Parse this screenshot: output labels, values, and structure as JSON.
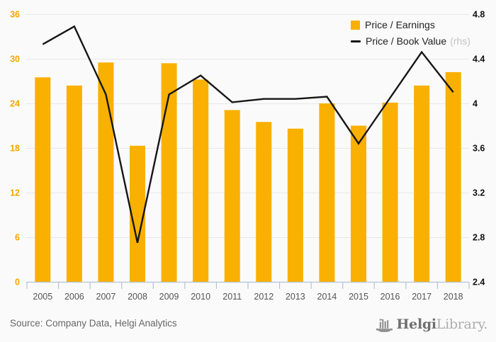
{
  "chart_data": {
    "type": "bar-line-combo",
    "categories": [
      "2005",
      "2006",
      "2007",
      "2008",
      "2009",
      "2010",
      "2011",
      "2012",
      "2013",
      "2014",
      "2015",
      "2016",
      "2017",
      "2018"
    ],
    "series": [
      {
        "name": "Price / Earnings",
        "type": "bar",
        "axis": "left",
        "values": [
          27.5,
          26.4,
          29.5,
          18.3,
          29.4,
          27.2,
          23.1,
          21.5,
          20.6,
          24.0,
          21.0,
          24.1,
          26.4,
          28.2
        ]
      },
      {
        "name": "Price / Book Value",
        "type": "line",
        "axis": "right",
        "values": [
          4.53,
          4.69,
          4.08,
          2.75,
          4.08,
          4.25,
          4.01,
          4.04,
          4.04,
          4.06,
          3.64,
          4.05,
          4.46,
          4.1
        ]
      }
    ],
    "left_axis": {
      "min": 0,
      "max": 36,
      "tick_values": [
        0,
        6,
        12,
        18,
        24,
        30,
        36
      ],
      "tick_labels": [
        "0",
        "6",
        "12",
        "18",
        "24",
        "30",
        "36"
      ]
    },
    "right_axis": {
      "min": 2.4,
      "max": 4.8,
      "tick_values": [
        2.4,
        2.8,
        3.2,
        3.6,
        4,
        4.4,
        4.8
      ],
      "tick_labels": [
        "2.4",
        "2.8",
        "3.2",
        "3.6",
        "4",
        "4.4",
        "4.8"
      ],
      "note": "rhs"
    },
    "grid": true,
    "legend_position": "top-right"
  },
  "legend": {
    "items": [
      {
        "label": "Price / Earnings",
        "note": ""
      },
      {
        "label": "Price / Book Value",
        "note": "(rhs)"
      }
    ]
  },
  "footer": {
    "source": "Source: Company Data, Helgi Analytics",
    "logo": {
      "bold": "Helgi",
      "light": "Library."
    }
  },
  "colors": {
    "bar": "#F9B000",
    "line": "#161616",
    "left_axis_label": "#F5A600",
    "right_axis_label": "#111111",
    "x_axis_label": "#555555",
    "axis_line": "#B5C3D8",
    "gridline": "#E8E8E8",
    "background": "#FAFAFA",
    "legend_text": "#222222",
    "legend_note": "#C3C3C3",
    "source_text": "#666666",
    "logo_dark": "#6F6F6F",
    "logo_light": "#ADADAD",
    "logo_icon": "#8F8F8F"
  }
}
